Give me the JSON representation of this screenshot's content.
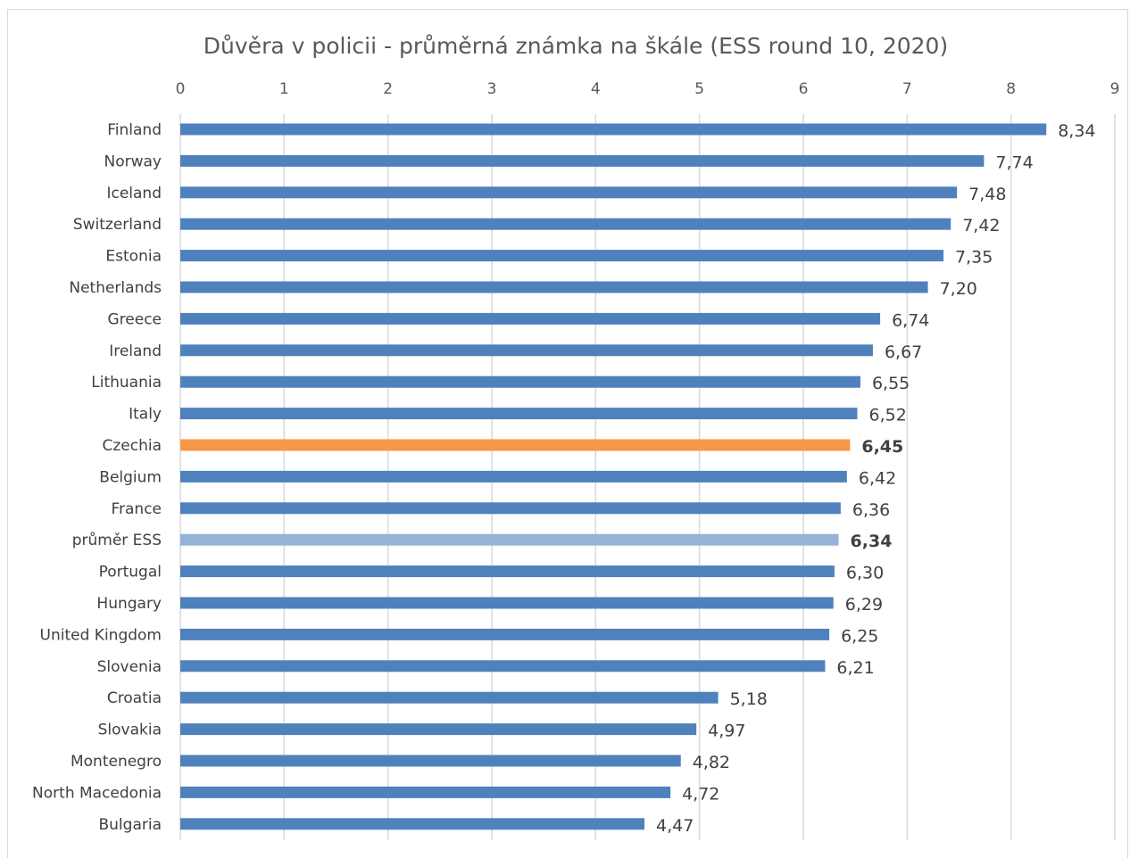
{
  "chart_data": {
    "type": "bar",
    "orientation": "horizontal",
    "title": "Důvěra v policii - průměrná známka na škále (ESS round 10, 2020)",
    "xlabel": "",
    "ylabel": "",
    "xlim": [
      0,
      9
    ],
    "x_ticks": [
      "0",
      "1",
      "2",
      "3",
      "4",
      "5",
      "6",
      "7",
      "8",
      "9"
    ],
    "x_axis_position": "top",
    "grid": true,
    "legend": "none",
    "categories": [
      "Finland",
      "Norway",
      "Iceland",
      "Switzerland",
      "Estonia",
      "Netherlands",
      "Greece",
      "Ireland",
      "Lithuania",
      "Italy",
      "Czechia",
      "Belgium",
      "France",
      "průměr ESS",
      "Portugal",
      "Hungary",
      "United Kingdom",
      "Slovenia",
      "Croatia",
      "Slovakia",
      "Montenegro",
      "North Macedonia",
      "Bulgaria"
    ],
    "values": [
      8.34,
      7.74,
      7.48,
      7.42,
      7.35,
      7.2,
      6.74,
      6.67,
      6.55,
      6.52,
      6.45,
      6.42,
      6.36,
      6.34,
      6.3,
      6.29,
      6.25,
      6.21,
      5.18,
      4.97,
      4.82,
      4.72,
      4.47
    ],
    "value_labels": [
      "8,34",
      "7,74",
      "7,48",
      "7,42",
      "7,35",
      "7,20",
      "6,74",
      "6,67",
      "6,55",
      "6,52",
      "6,45",
      "6,42",
      "6,36",
      "6,34",
      "6,30",
      "6,29",
      "6,25",
      "6,21",
      "5,18",
      "4,97",
      "4,82",
      "4,72",
      "4,47"
    ],
    "colors": {
      "default": "#4f81bd",
      "highlight": "#f79646",
      "average": "#95b3d7"
    },
    "highlighted": {
      "Czechia": "highlight",
      "průměr ESS": "average"
    },
    "bold_labels": [
      "Czechia",
      "průměr ESS"
    ]
  }
}
